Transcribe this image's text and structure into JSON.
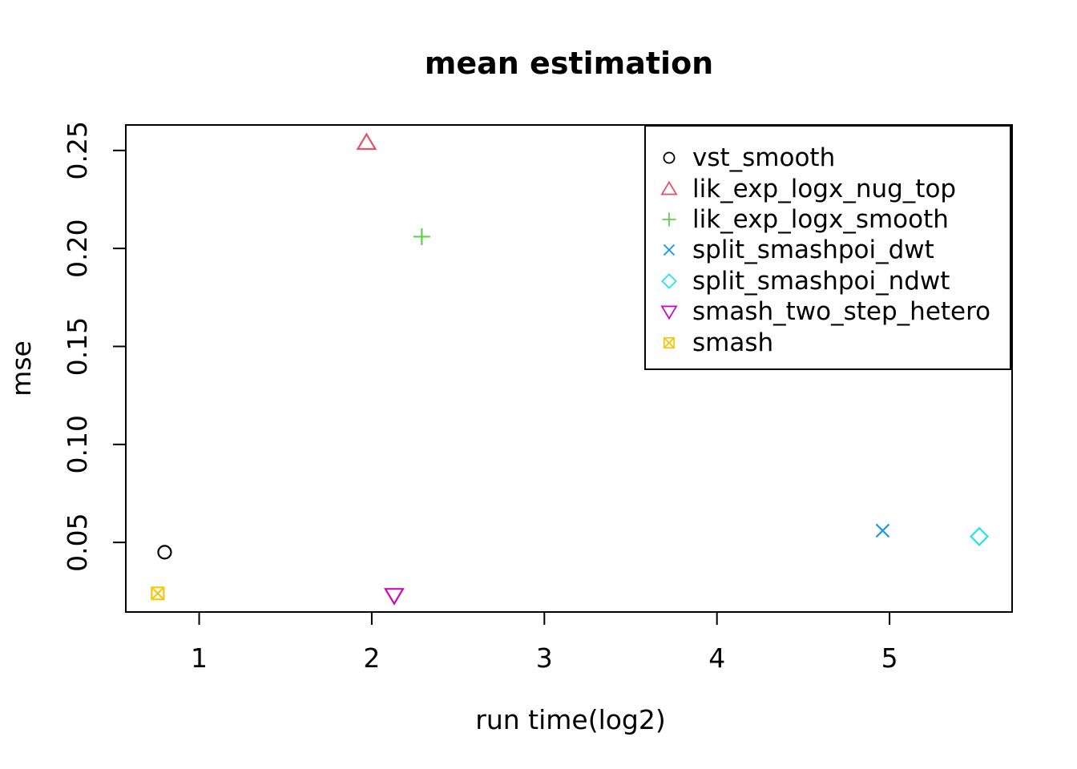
{
  "chart_data": {
    "type": "scatter",
    "title": "mean estimation",
    "xlabel": "run time(log2)",
    "ylabel": "mse",
    "xlim": [
      0.575,
      5.71
    ],
    "ylim": [
      0.0145,
      0.263
    ],
    "x_ticks": [
      1,
      2,
      3,
      4,
      5
    ],
    "x_tick_labels": [
      "1",
      "2",
      "3",
      "4",
      "5"
    ],
    "y_ticks": [
      0.05,
      0.1,
      0.15,
      0.2,
      0.25
    ],
    "y_tick_labels": [
      "0.05",
      "0.10",
      "0.15",
      "0.20",
      "0.25"
    ],
    "grid": false,
    "legend_position": "top-right",
    "background_color": "#ffffff",
    "axis_color": "#000000",
    "series": [
      {
        "name": "vst_smooth",
        "marker": "circle",
        "color": "#000000",
        "points": [
          [
            0.8,
            0.045
          ]
        ]
      },
      {
        "name": "lik_exp_logx_nug_top",
        "marker": "triangle-up",
        "color": "#DF536B",
        "points": [
          [
            1.97,
            0.254
          ]
        ]
      },
      {
        "name": "lik_exp_logx_smooth",
        "marker": "plus",
        "color": "#61D04F",
        "points": [
          [
            2.29,
            0.206
          ]
        ]
      },
      {
        "name": "split_smashpoi_dwt",
        "marker": "x",
        "color": "#2297E6",
        "points": [
          [
            4.96,
            0.056
          ]
        ]
      },
      {
        "name": "split_smashpoi_ndwt",
        "marker": "diamond",
        "color": "#28E2E5",
        "points": [
          [
            5.52,
            0.053
          ]
        ]
      },
      {
        "name": "smash_two_step_hetero",
        "marker": "triangle-down",
        "color": "#CD0BBC",
        "points": [
          [
            2.13,
            0.023
          ]
        ]
      },
      {
        "name": "smash",
        "marker": "square-x",
        "color": "#F5C710",
        "points": [
          [
            0.76,
            0.024
          ]
        ]
      }
    ]
  }
}
